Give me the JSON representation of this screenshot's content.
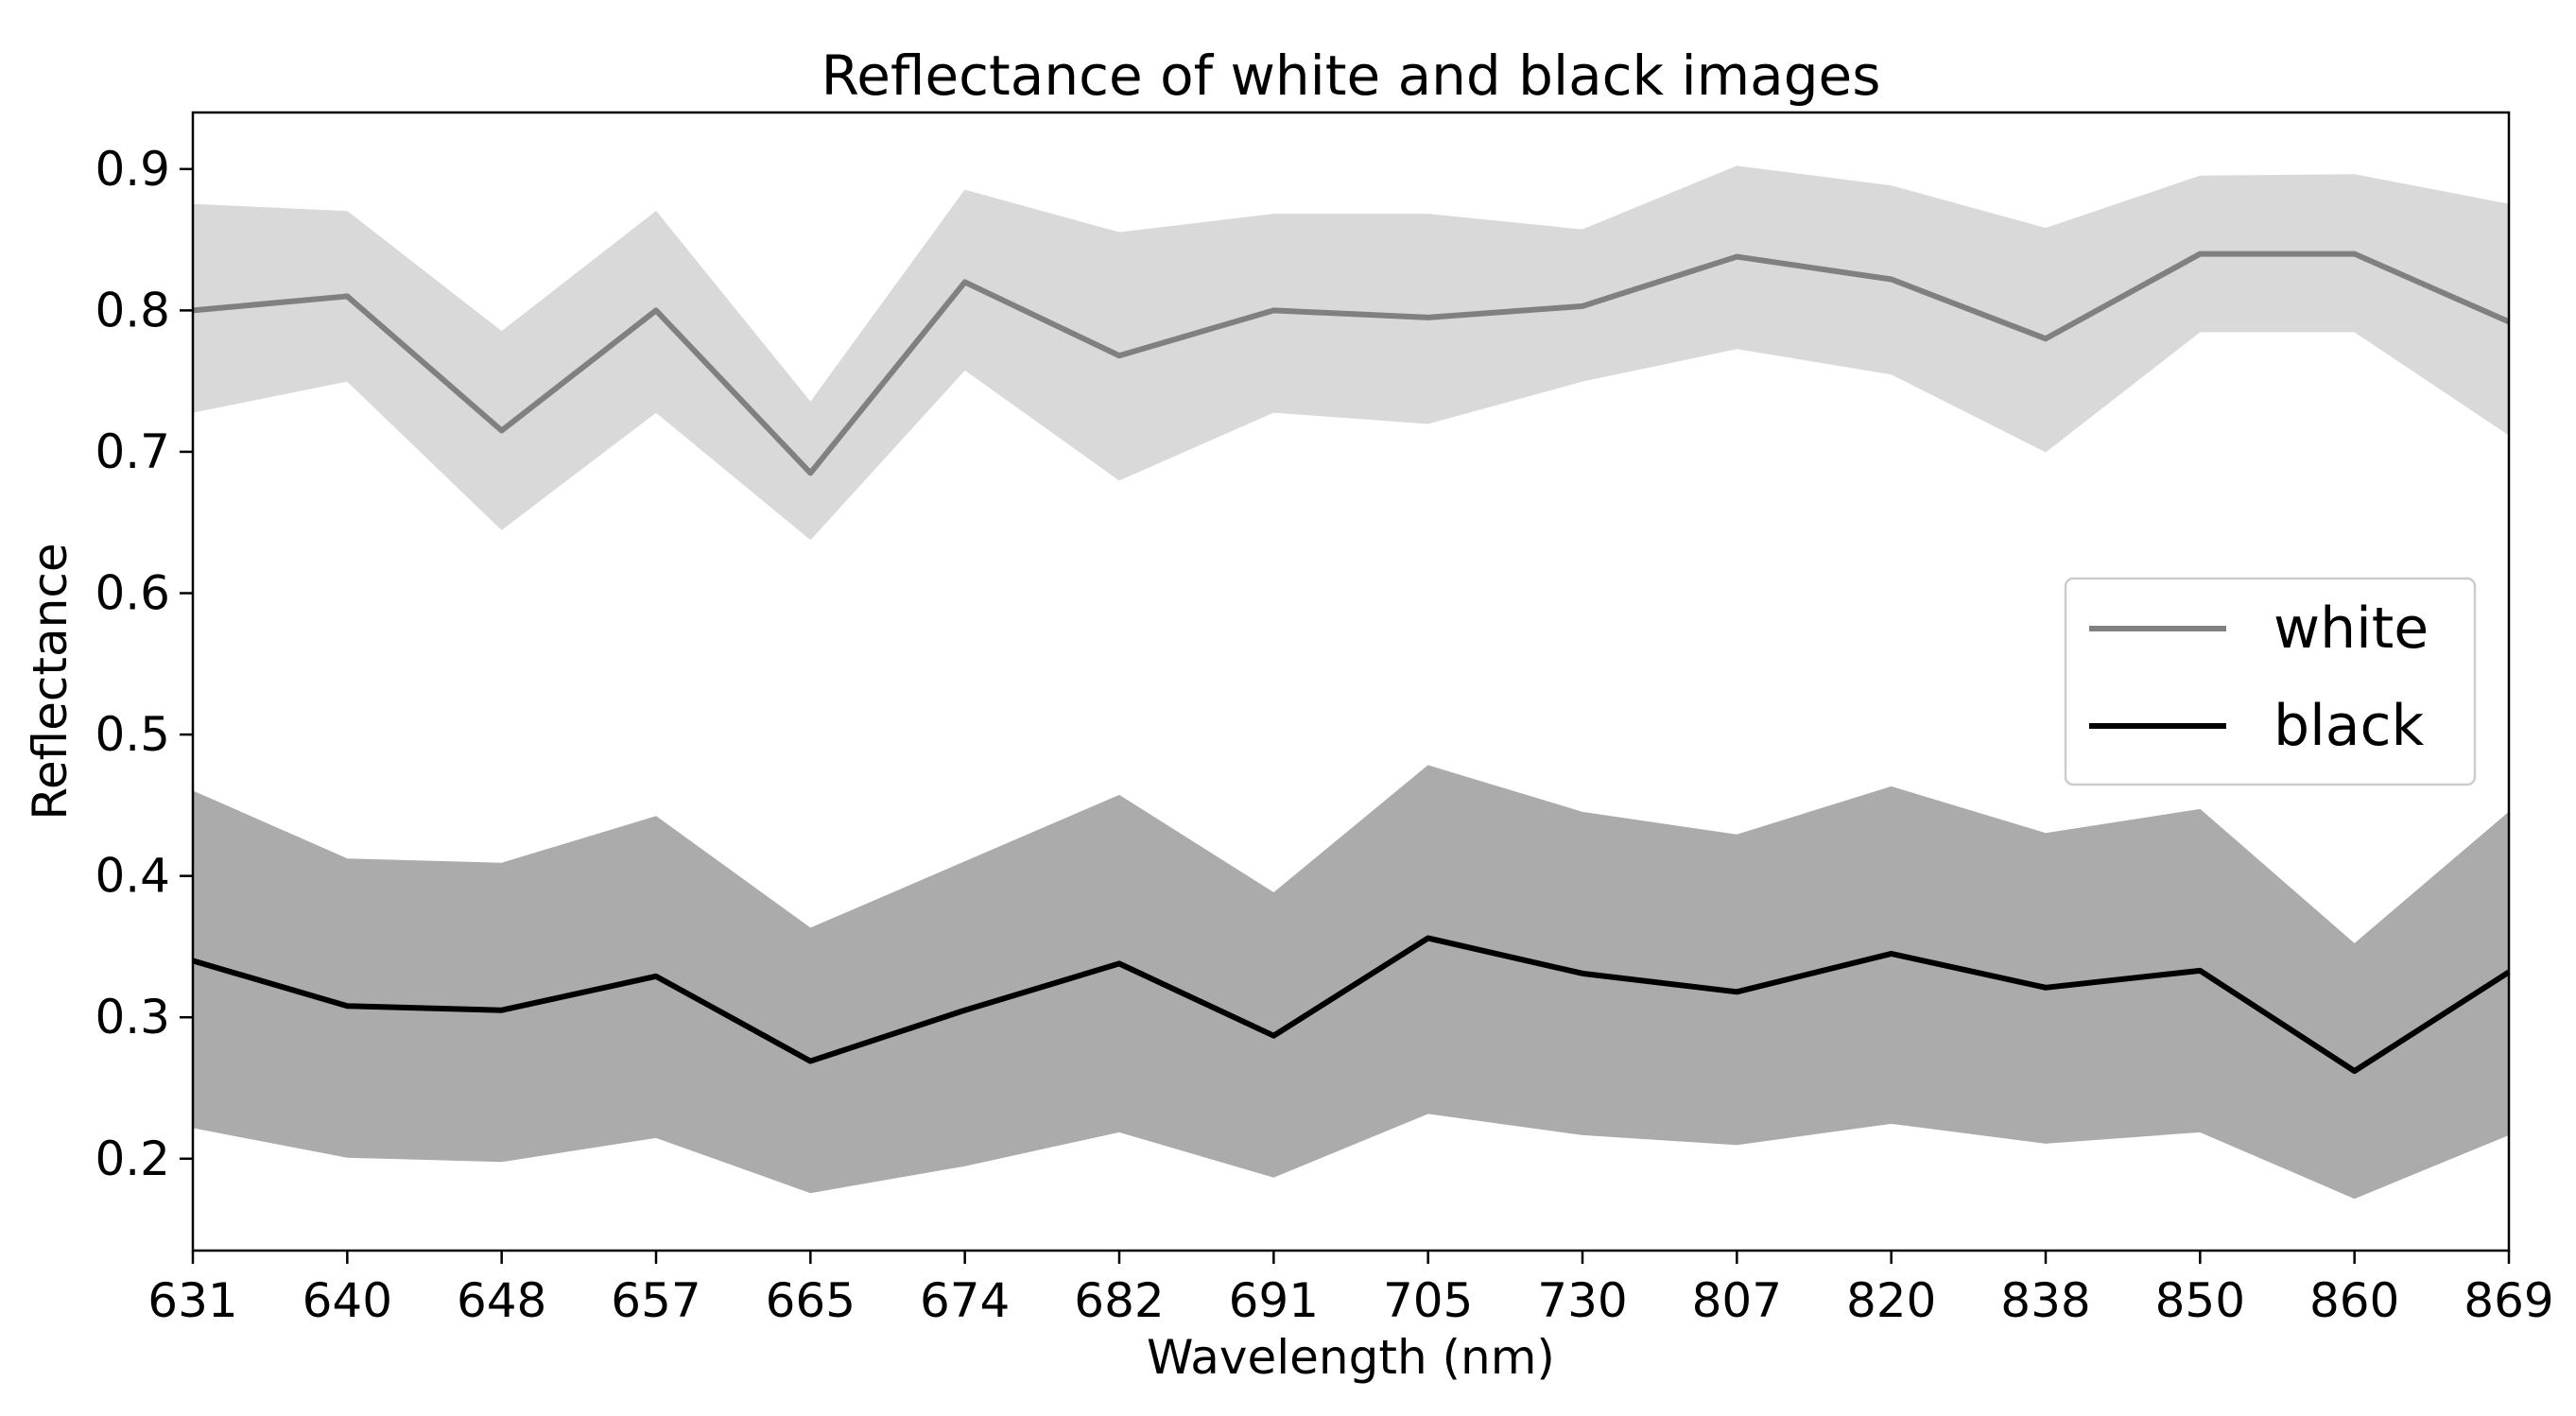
{
  "chart_data": {
    "type": "line",
    "title": "Reflectance of white and black images",
    "xlabel": "Wavelength (nm)",
    "ylabel": "Reflectance",
    "categories": [
      "631",
      "640",
      "648",
      "657",
      "665",
      "674",
      "682",
      "691",
      "705",
      "730",
      "807",
      "820",
      "838",
      "850",
      "860",
      "869"
    ],
    "ylim": [
      0.135,
      0.94
    ],
    "yticks": [
      0.2,
      0.3,
      0.4,
      0.5,
      0.6,
      0.7,
      0.8,
      0.9
    ],
    "grid": false,
    "legend_position": "center-right",
    "series": [
      {
        "name": "white",
        "color": "#808080",
        "band_color": "#d9d9d9",
        "values": [
          0.8,
          0.81,
          0.715,
          0.8,
          0.685,
          0.82,
          0.768,
          0.8,
          0.795,
          0.803,
          0.838,
          0.822,
          0.78,
          0.84,
          0.84,
          0.792
        ],
        "upper": [
          0.875,
          0.87,
          0.785,
          0.87,
          0.735,
          0.885,
          0.855,
          0.868,
          0.868,
          0.857,
          0.902,
          0.888,
          0.858,
          0.895,
          0.896,
          0.875
        ],
        "lower": [
          0.728,
          0.75,
          0.645,
          0.728,
          0.638,
          0.758,
          0.68,
          0.728,
          0.72,
          0.75,
          0.773,
          0.755,
          0.7,
          0.785,
          0.785,
          0.712
        ]
      },
      {
        "name": "black",
        "color": "#000000",
        "band_color": "#ababab",
        "values": [
          0.34,
          0.308,
          0.305,
          0.329,
          0.269,
          0.305,
          0.338,
          0.287,
          0.356,
          0.331,
          0.318,
          0.345,
          0.321,
          0.333,
          0.262,
          0.332
        ],
        "upper": [
          0.46,
          0.412,
          0.409,
          0.442,
          0.363,
          0.41,
          0.457,
          0.388,
          0.478,
          0.445,
          0.429,
          0.463,
          0.43,
          0.447,
          0.352,
          0.445
        ],
        "lower": [
          0.222,
          0.201,
          0.198,
          0.215,
          0.176,
          0.195,
          0.219,
          0.187,
          0.232,
          0.217,
          0.21,
          0.225,
          0.211,
          0.219,
          0.172,
          0.217
        ]
      }
    ]
  }
}
